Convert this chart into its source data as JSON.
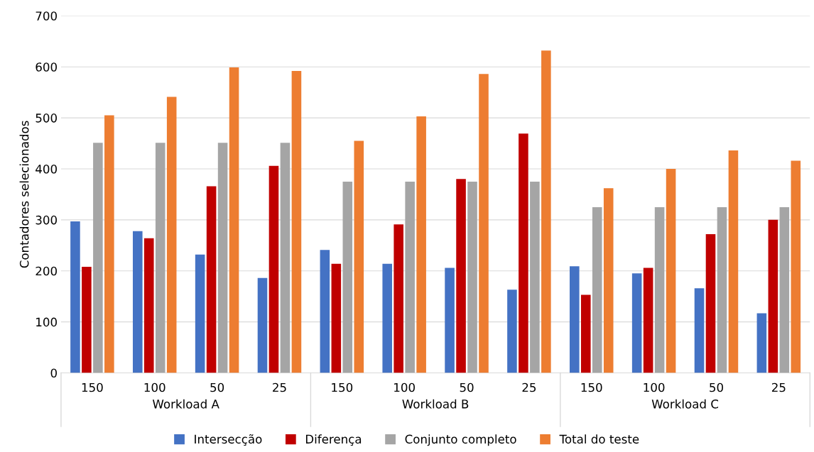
{
  "chart_data": {
    "type": "bar",
    "ylabel": "Contadores selecionados",
    "categories": [
      "150",
      "100",
      "50",
      "25",
      "150",
      "100",
      "50",
      "25",
      "150",
      "100",
      "50",
      "25"
    ],
    "series": [
      {
        "name": "Intersecção",
        "color": "#4472c4",
        "values": [
          297,
          278,
          232,
          186,
          241,
          214,
          206,
          163,
          209,
          195,
          166,
          117
        ]
      },
      {
        "name": "Diferença",
        "color": "#c00000",
        "values": [
          208,
          264,
          366,
          406,
          214,
          291,
          380,
          469,
          153,
          206,
          272,
          300
        ]
      },
      {
        "name": "Conjunto completo",
        "color": "#a5a5a5",
        "values": [
          451,
          451,
          451,
          451,
          375,
          375,
          375,
          375,
          325,
          325,
          325,
          325
        ]
      },
      {
        "name": "Total do teste",
        "color": "#ed7d31",
        "values": [
          505,
          541,
          599,
          592,
          455,
          503,
          586,
          632,
          362,
          400,
          436,
          416
        ]
      }
    ],
    "annotations": [
      "Workload A",
      "Workload B",
      "Workload C"
    ],
    "ylim": [
      0,
      700
    ],
    "yticks": [
      0,
      100,
      200,
      300,
      400,
      500,
      600,
      700
    ],
    "grid": "y",
    "legend": "bottom"
  }
}
